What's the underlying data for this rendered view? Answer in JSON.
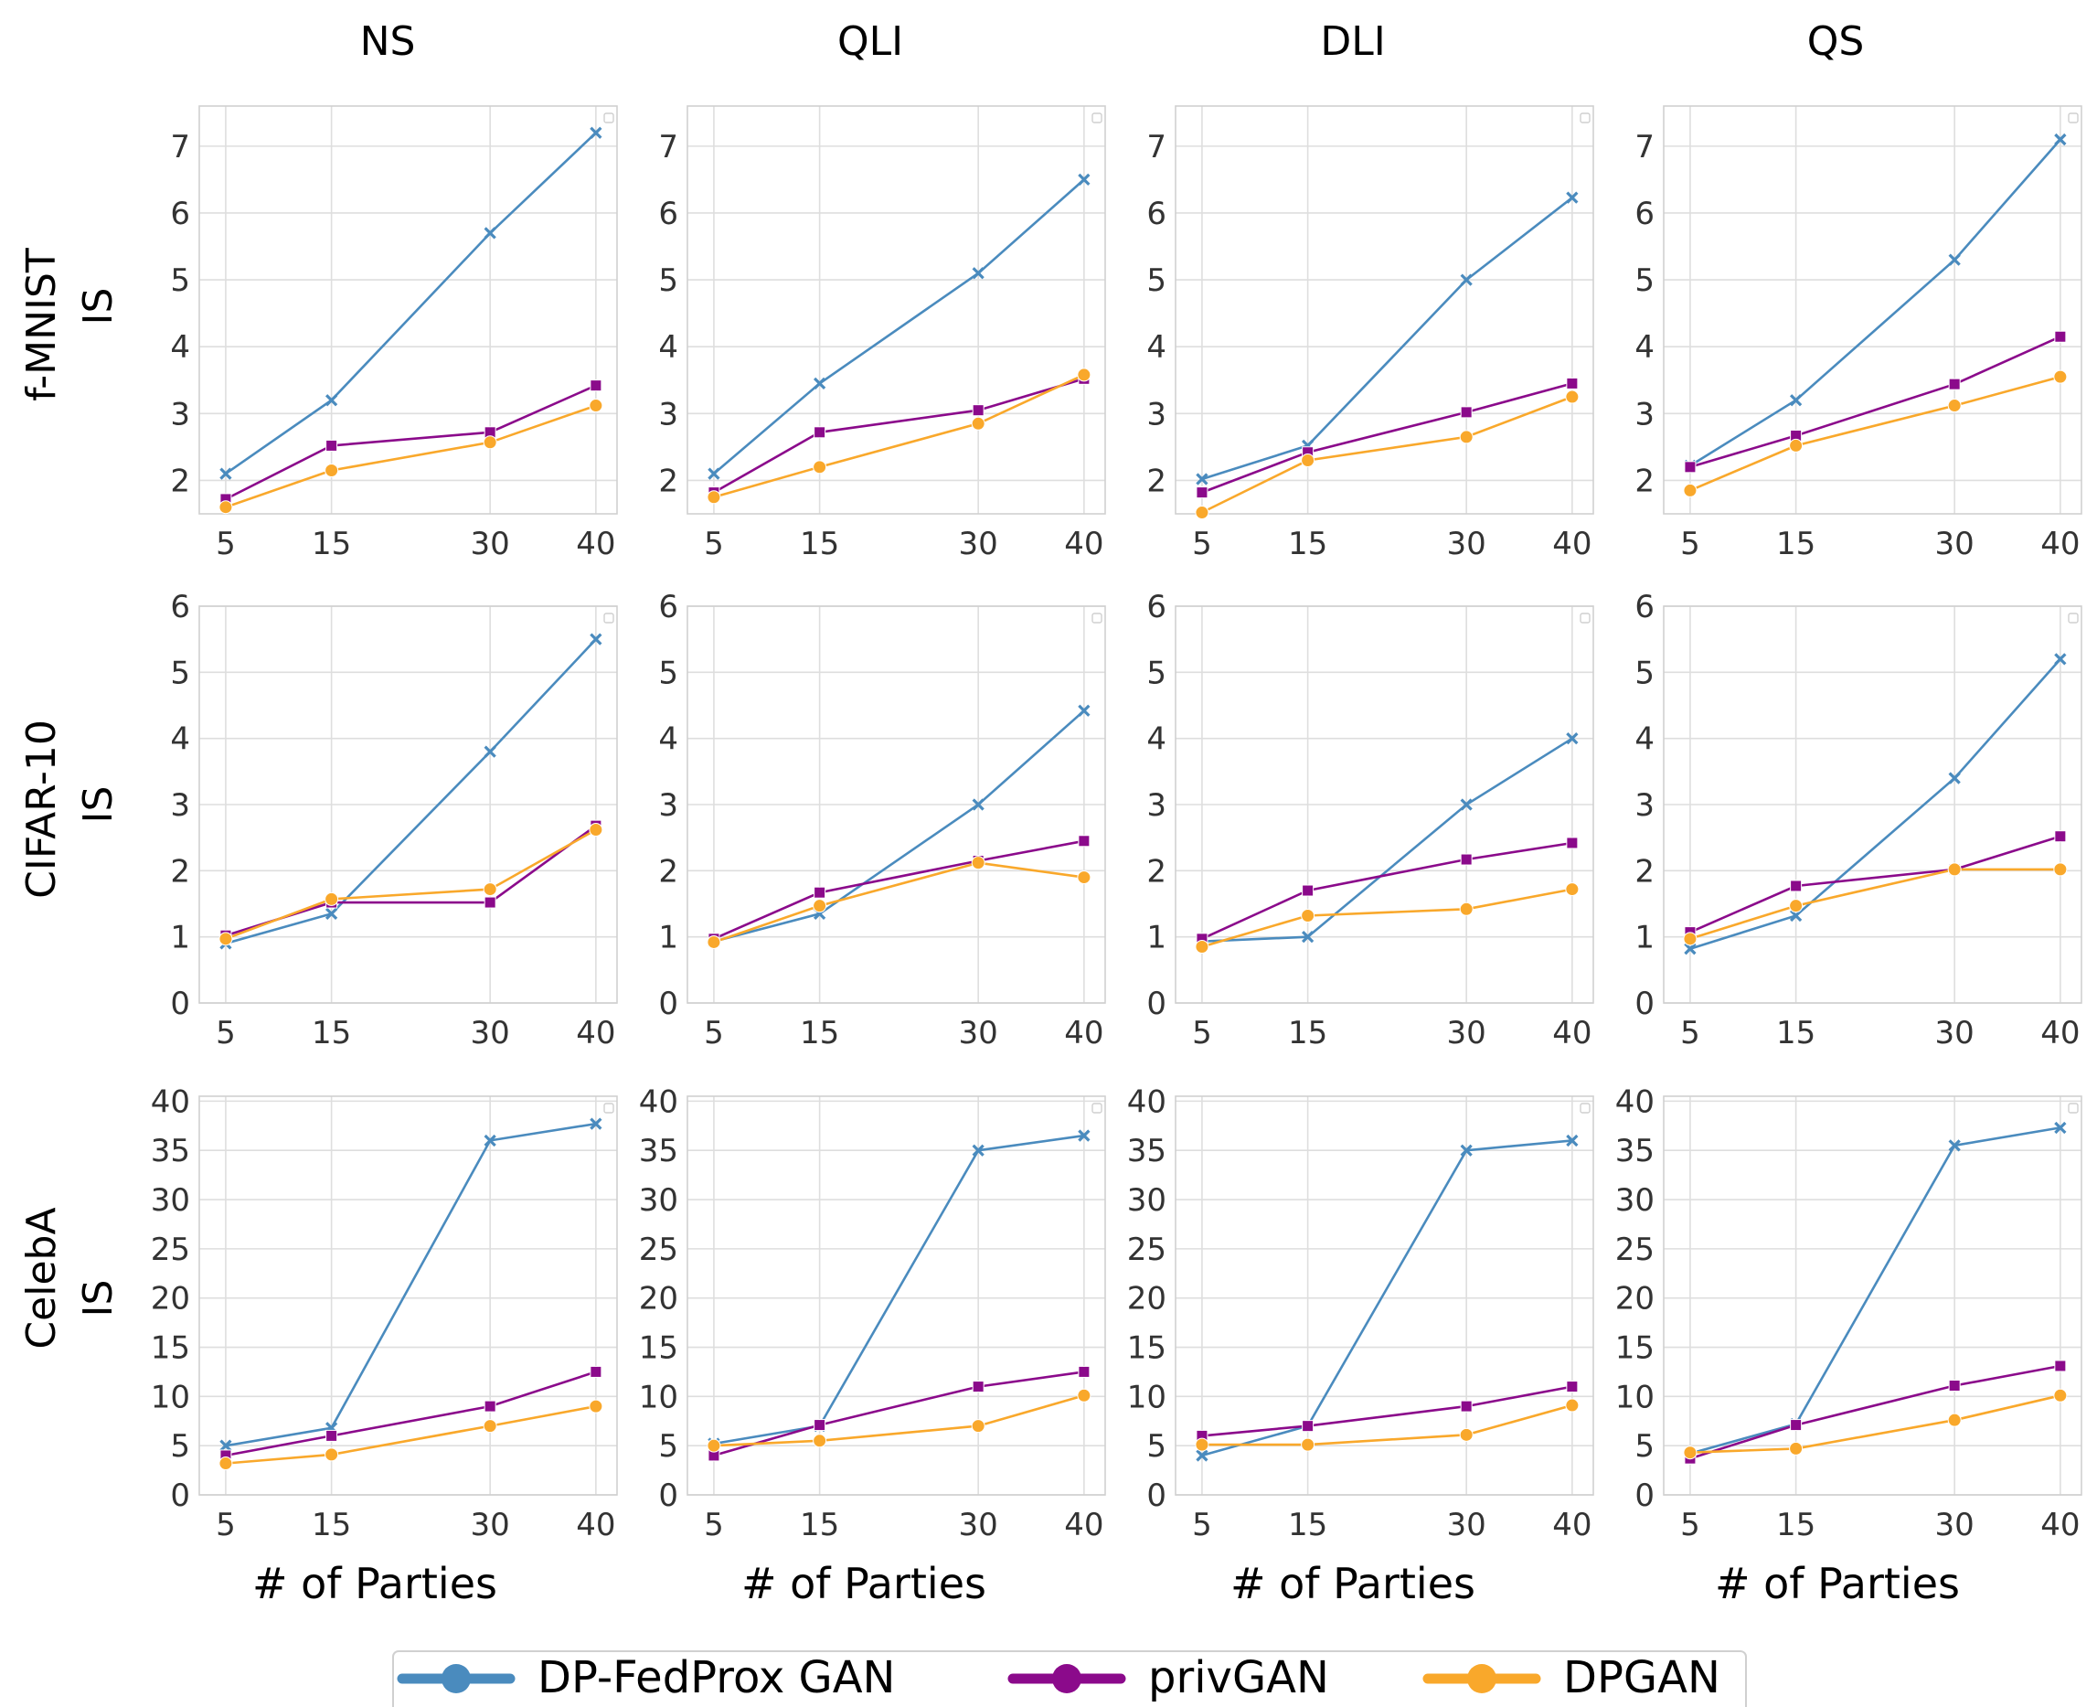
{
  "col_titles": [
    "NS",
    "QLI",
    "DLI",
    "QS"
  ],
  "row_labels": [
    {
      "line1": "f-MNIST",
      "line2": "IS"
    },
    {
      "line1": "CIFAR-10",
      "line2": "IS"
    },
    {
      "line1": "CelebA",
      "line2": "IS"
    }
  ],
  "xlabel": "# of Parties",
  "series_styles": [
    {
      "name": "DP-FedProx GAN",
      "color": "#4a8bbe",
      "marker": "x"
    },
    {
      "name": "privGAN",
      "color": "#8b0a8b",
      "marker": "square"
    },
    {
      "name": "DPGAN",
      "color": "#f9a82b",
      "marker": "circle"
    }
  ],
  "chart_data": [
    {
      "type": "line",
      "dataset": "f-MNIST",
      "method": "NS",
      "x": [
        5,
        15,
        30,
        40
      ],
      "xticks": [
        5,
        15,
        30,
        40
      ],
      "ylim": [
        1.5,
        7.6
      ],
      "yticks": [
        2,
        3,
        4,
        5,
        6,
        7
      ],
      "ylabel": "IS",
      "grid": true,
      "series": [
        {
          "name": "DP-FedProx GAN",
          "values": [
            2.1,
            3.2,
            5.7,
            7.2
          ]
        },
        {
          "name": "privGAN",
          "values": [
            1.72,
            2.52,
            2.72,
            3.42
          ]
        },
        {
          "name": "DPGAN",
          "values": [
            1.6,
            2.15,
            2.57,
            3.12
          ]
        }
      ]
    },
    {
      "type": "line",
      "dataset": "f-MNIST",
      "method": "QLI",
      "x": [
        5,
        15,
        30,
        40
      ],
      "xticks": [
        5,
        15,
        30,
        40
      ],
      "ylim": [
        1.5,
        7.6
      ],
      "yticks": [
        2,
        3,
        4,
        5,
        6,
        7
      ],
      "ylabel": "IS",
      "grid": true,
      "series": [
        {
          "name": "DP-FedProx GAN",
          "values": [
            2.1,
            3.45,
            5.1,
            6.5
          ]
        },
        {
          "name": "privGAN",
          "values": [
            1.82,
            2.72,
            3.05,
            3.52
          ]
        },
        {
          "name": "DPGAN",
          "values": [
            1.75,
            2.2,
            2.85,
            3.58
          ]
        }
      ]
    },
    {
      "type": "line",
      "dataset": "f-MNIST",
      "method": "DLI",
      "x": [
        5,
        15,
        30,
        40
      ],
      "xticks": [
        5,
        15,
        30,
        40
      ],
      "ylim": [
        1.5,
        7.6
      ],
      "yticks": [
        2,
        3,
        4,
        5,
        6,
        7
      ],
      "ylabel": "IS",
      "grid": true,
      "series": [
        {
          "name": "DP-FedProx GAN",
          "values": [
            2.02,
            2.52,
            5.0,
            6.23
          ]
        },
        {
          "name": "privGAN",
          "values": [
            1.82,
            2.42,
            3.02,
            3.45
          ]
        },
        {
          "name": "DPGAN",
          "values": [
            1.52,
            2.3,
            2.65,
            3.25
          ]
        }
      ]
    },
    {
      "type": "line",
      "dataset": "f-MNIST",
      "method": "QS",
      "x": [
        5,
        15,
        30,
        40
      ],
      "xticks": [
        5,
        15,
        30,
        40
      ],
      "ylim": [
        1.5,
        7.6
      ],
      "yticks": [
        2,
        3,
        4,
        5,
        6,
        7
      ],
      "ylabel": "IS",
      "grid": true,
      "series": [
        {
          "name": "DP-FedProx GAN",
          "values": [
            2.22,
            3.2,
            5.3,
            7.1
          ]
        },
        {
          "name": "privGAN",
          "values": [
            2.2,
            2.67,
            3.44,
            4.15
          ]
        },
        {
          "name": "DPGAN",
          "values": [
            1.85,
            2.52,
            3.12,
            3.55
          ]
        }
      ]
    },
    {
      "type": "line",
      "dataset": "CIFAR-10",
      "method": "NS",
      "x": [
        5,
        15,
        30,
        40
      ],
      "xticks": [
        5,
        15,
        30,
        40
      ],
      "ylim": [
        0,
        6
      ],
      "yticks": [
        0,
        1,
        2,
        3,
        4,
        5,
        6
      ],
      "ylabel": "IS",
      "grid": true,
      "series": [
        {
          "name": "DP-FedProx GAN",
          "values": [
            0.9,
            1.35,
            3.8,
            5.5
          ]
        },
        {
          "name": "privGAN",
          "values": [
            1.02,
            1.52,
            1.52,
            2.68
          ]
        },
        {
          "name": "DPGAN",
          "values": [
            0.97,
            1.57,
            1.72,
            2.62
          ]
        }
      ]
    },
    {
      "type": "line",
      "dataset": "CIFAR-10",
      "method": "QLI",
      "x": [
        5,
        15,
        30,
        40
      ],
      "xticks": [
        5,
        15,
        30,
        40
      ],
      "ylim": [
        0,
        6
      ],
      "yticks": [
        0,
        1,
        2,
        3,
        4,
        5,
        6
      ],
      "ylabel": "IS",
      "grid": true,
      "series": [
        {
          "name": "DP-FedProx GAN",
          "values": [
            0.93,
            1.35,
            3.0,
            4.42
          ]
        },
        {
          "name": "privGAN",
          "values": [
            0.97,
            1.67,
            2.15,
            2.45
          ]
        },
        {
          "name": "DPGAN",
          "values": [
            0.92,
            1.47,
            2.12,
            1.9
          ]
        }
      ]
    },
    {
      "type": "line",
      "dataset": "CIFAR-10",
      "method": "DLI",
      "x": [
        5,
        15,
        30,
        40
      ],
      "xticks": [
        5,
        15,
        30,
        40
      ],
      "ylim": [
        0,
        6
      ],
      "yticks": [
        0,
        1,
        2,
        3,
        4,
        5,
        6
      ],
      "ylabel": "IS",
      "grid": true,
      "series": [
        {
          "name": "DP-FedProx GAN",
          "values": [
            0.93,
            1.0,
            3.0,
            4.0
          ]
        },
        {
          "name": "privGAN",
          "values": [
            0.97,
            1.7,
            2.17,
            2.42
          ]
        },
        {
          "name": "DPGAN",
          "values": [
            0.85,
            1.32,
            1.42,
            1.72
          ]
        }
      ]
    },
    {
      "type": "line",
      "dataset": "CIFAR-10",
      "method": "QS",
      "x": [
        5,
        15,
        30,
        40
      ],
      "xticks": [
        5,
        15,
        30,
        40
      ],
      "ylim": [
        0,
        6
      ],
      "yticks": [
        0,
        1,
        2,
        3,
        4,
        5,
        6
      ],
      "ylabel": "IS",
      "grid": true,
      "series": [
        {
          "name": "DP-FedProx GAN",
          "values": [
            0.82,
            1.32,
            3.4,
            5.2
          ]
        },
        {
          "name": "privGAN",
          "values": [
            1.07,
            1.77,
            2.02,
            2.52
          ]
        },
        {
          "name": "DPGAN",
          "values": [
            0.97,
            1.47,
            2.02,
            2.02
          ]
        }
      ]
    },
    {
      "type": "line",
      "dataset": "CelebA",
      "method": "NS",
      "x": [
        5,
        15,
        30,
        40
      ],
      "xticks": [
        5,
        15,
        30,
        40
      ],
      "ylim": [
        0,
        40.5
      ],
      "yticks": [
        0,
        5,
        10,
        15,
        20,
        25,
        30,
        35,
        40
      ],
      "ylabel": "IS",
      "grid": true,
      "series": [
        {
          "name": "DP-FedProx GAN",
          "values": [
            5.0,
            6.8,
            36.0,
            37.7
          ]
        },
        {
          "name": "privGAN",
          "values": [
            4.0,
            6.0,
            9.0,
            12.5
          ]
        },
        {
          "name": "DPGAN",
          "values": [
            3.2,
            4.1,
            7.0,
            9.0
          ]
        }
      ]
    },
    {
      "type": "line",
      "dataset": "CelebA",
      "method": "QLI",
      "x": [
        5,
        15,
        30,
        40
      ],
      "xticks": [
        5,
        15,
        30,
        40
      ],
      "ylim": [
        0,
        40.5
      ],
      "yticks": [
        0,
        5,
        10,
        15,
        20,
        25,
        30,
        35,
        40
      ],
      "ylabel": "IS",
      "grid": true,
      "series": [
        {
          "name": "DP-FedProx GAN",
          "values": [
            5.2,
            7.0,
            35.0,
            36.5
          ]
        },
        {
          "name": "privGAN",
          "values": [
            4.0,
            7.1,
            11.0,
            12.5
          ]
        },
        {
          "name": "DPGAN",
          "values": [
            5.0,
            5.5,
            7.0,
            10.1
          ]
        }
      ]
    },
    {
      "type": "line",
      "dataset": "CelebA",
      "method": "DLI",
      "x": [
        5,
        15,
        30,
        40
      ],
      "xticks": [
        5,
        15,
        30,
        40
      ],
      "ylim": [
        0,
        40.5
      ],
      "yticks": [
        0,
        5,
        10,
        15,
        20,
        25,
        30,
        35,
        40
      ],
      "ylabel": "IS",
      "grid": true,
      "series": [
        {
          "name": "DP-FedProx GAN",
          "values": [
            4.0,
            7.0,
            35.0,
            36.0
          ]
        },
        {
          "name": "privGAN",
          "values": [
            6.0,
            7.0,
            9.0,
            11.0
          ]
        },
        {
          "name": "DPGAN",
          "values": [
            5.1,
            5.1,
            6.1,
            9.1
          ]
        }
      ]
    },
    {
      "type": "line",
      "dataset": "CelebA",
      "method": "QS",
      "x": [
        5,
        15,
        30,
        40
      ],
      "xticks": [
        5,
        15,
        30,
        40
      ],
      "ylim": [
        0,
        40.5
      ],
      "yticks": [
        0,
        5,
        10,
        15,
        20,
        25,
        30,
        35,
        40
      ],
      "ylabel": "IS",
      "grid": true,
      "series": [
        {
          "name": "DP-FedProx GAN",
          "values": [
            4.2,
            7.2,
            35.5,
            37.3
          ]
        },
        {
          "name": "privGAN",
          "values": [
            3.7,
            7.1,
            11.1,
            13.1
          ]
        },
        {
          "name": "DPGAN",
          "values": [
            4.3,
            4.7,
            7.6,
            10.1
          ]
        }
      ]
    }
  ]
}
